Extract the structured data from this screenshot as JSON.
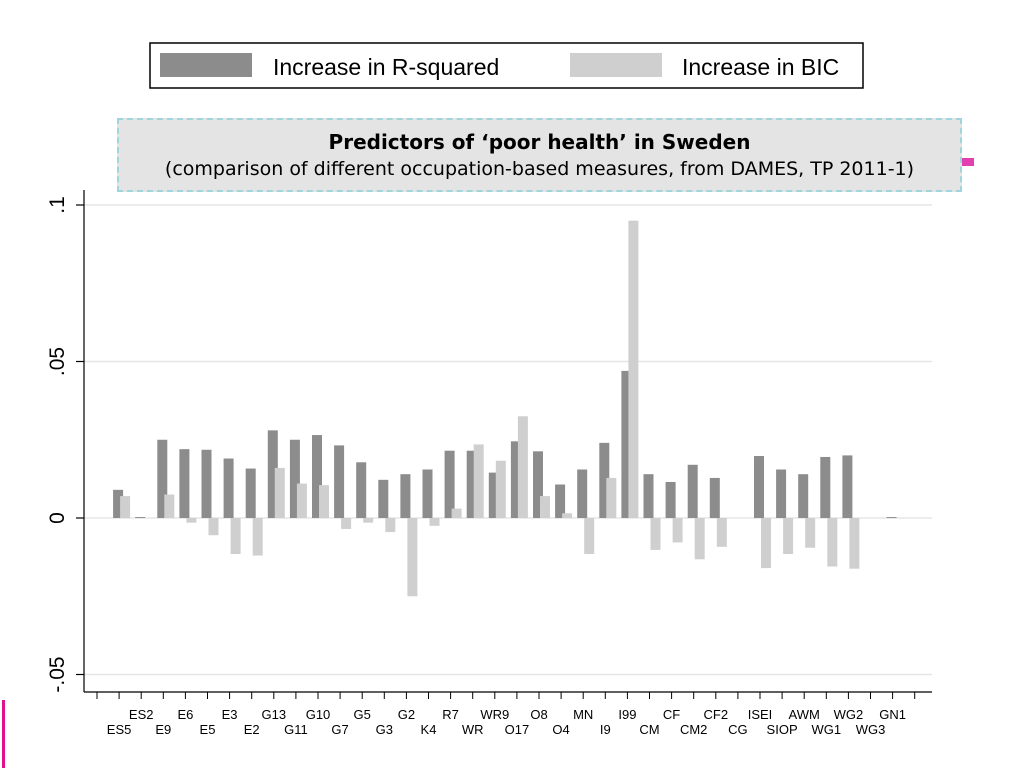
{
  "title": {
    "main": "Predictors of ‘poor health’ in Sweden",
    "sub": "(comparison of different occupation-based measures, from DAMES, TP 2011-1)"
  },
  "legend": [
    {
      "label": "Increase in R-squared",
      "color": "#8c8c8c"
    },
    {
      "label": "Increase in BIC",
      "color": "#cfcfcf"
    }
  ],
  "chart_data": {
    "type": "bar",
    "title": "Predictors of ‘poor health’ in Sweden",
    "subtitle": "(comparison of different occupation-based measures, from DAMES, TP 2011-1)",
    "ylim": [
      -0.05,
      0.1
    ],
    "y_ticks": [
      -0.05,
      0,
      0.05,
      0.1
    ],
    "y_tick_labels": [
      "-.05",
      "0",
      ".05",
      ".1"
    ],
    "grid": true,
    "legend_position": "top",
    "categories": [
      "ES5",
      "ES2",
      "E9",
      "E6",
      "E5",
      "E3",
      "E2",
      "G13",
      "G11",
      "G10",
      "G7",
      "G5",
      "G3",
      "G2",
      "K4",
      "R7",
      "WR",
      "WR9",
      "O17",
      "O8",
      "O4",
      "MN",
      "I9",
      "I99",
      "CM",
      "CF",
      "CM2",
      "CF2",
      "CG",
      "ISEI",
      "SIOP",
      "AWM",
      "WG1",
      "WG2",
      "WG3",
      "GN1"
    ],
    "series": [
      {
        "name": "Increase in R-squared",
        "color": "#8c8c8c",
        "values": [
          0.009,
          0.0003,
          0.025,
          0.022,
          0.0218,
          0.019,
          0.0158,
          0.028,
          0.025,
          0.0265,
          0.0232,
          0.0178,
          0.0122,
          0.014,
          0.0155,
          0.0215,
          0.0215,
          0.0145,
          0.0245,
          0.0213,
          0.0107,
          0.0155,
          0.024,
          0.047,
          0.014,
          0.0115,
          0.017,
          0.0128,
          0.0,
          0.0198,
          0.0155,
          0.014,
          0.0195,
          0.02,
          0.0,
          0.0003
        ]
      },
      {
        "name": "Increase in BIC",
        "color": "#cfcfcf",
        "values": [
          0.007,
          0.0,
          0.0075,
          -0.0015,
          -0.0055,
          -0.0115,
          -0.012,
          0.016,
          0.011,
          0.0105,
          -0.0035,
          -0.0015,
          -0.0045,
          -0.025,
          -0.0025,
          0.003,
          0.0235,
          0.0183,
          0.0325,
          0.007,
          0.0015,
          -0.0115,
          0.0128,
          0.095,
          -0.0102,
          -0.0078,
          -0.0132,
          -0.0092,
          0.0,
          -0.016,
          -0.0115,
          -0.0095,
          -0.0155,
          -0.0162,
          0.0,
          0.0
        ]
      }
    ]
  }
}
